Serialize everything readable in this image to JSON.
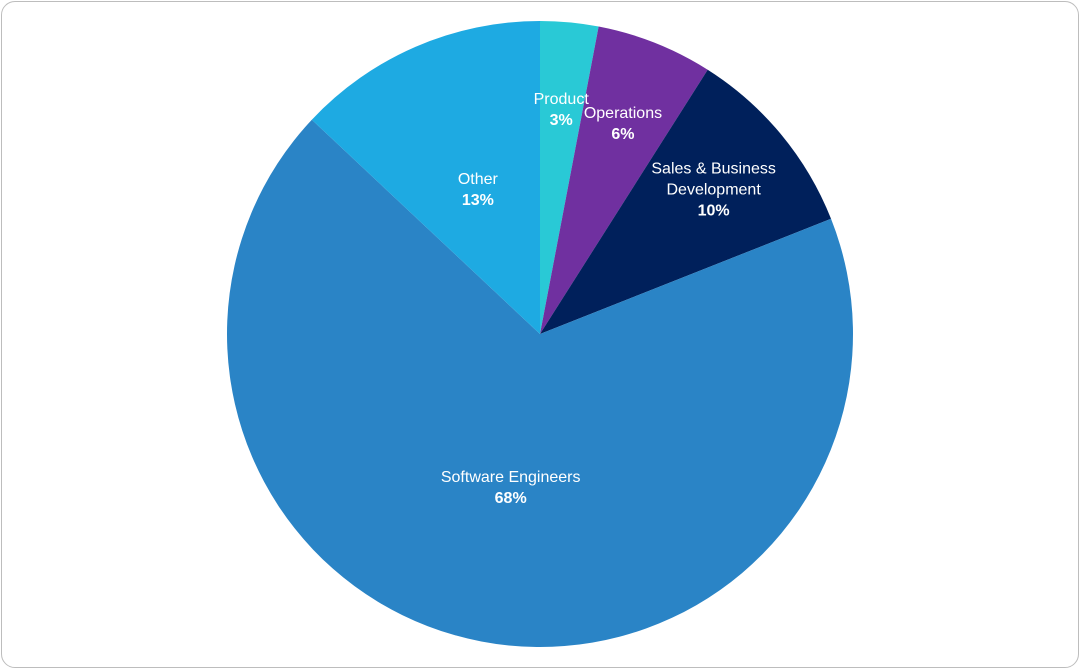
{
  "chart_data": {
    "type": "pie",
    "categories": [
      "Product",
      "Operations",
      "Sales & Business Development",
      "Software Engineers",
      "Other"
    ],
    "values": [
      3,
      6,
      10,
      68,
      13
    ],
    "value_labels": [
      "3%",
      "6%",
      "10%",
      "68%",
      "13%"
    ],
    "colors": [
      "#29c9d6",
      "#7030a0",
      "#00205b",
      "#2a84c6",
      "#1eaae2"
    ]
  }
}
